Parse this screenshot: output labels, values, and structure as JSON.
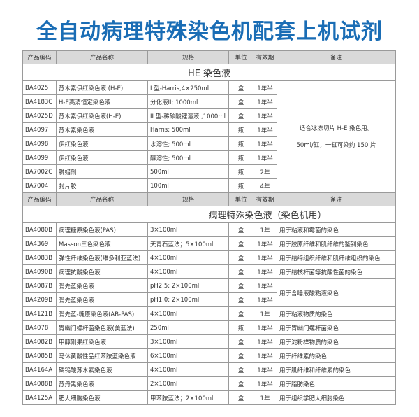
{
  "title": "全自动病理特殊染色机配套上机试剂",
  "headers": [
    "产品编码",
    "产品名称",
    "规格",
    "单位",
    "有效期",
    "备注"
  ],
  "sections": [
    {
      "title": "HE 染色液",
      "shared_remark": [
        "适合冰冻切片 H-E 染色用。",
        "50ml/缸，一缸可染约 150 片"
      ],
      "rows": [
        [
          "BA4025",
          "苏木素伊红染色液 (H-E)",
          "I 型-Harris,4×250ml",
          "盒",
          "1年半"
        ],
        [
          "BA4183C",
          "H-E高清恒定染色液",
          "分化液II; 1000ml",
          "盒",
          "1年半"
        ],
        [
          "BA4025D",
          "苏木素伊红染色液(H-E)",
          "II 型-稀碳酸锂溶液 ,1000ml",
          "盒",
          "1年半"
        ],
        [
          "BA4097",
          "苏木素染色液",
          "Harris; 500ml",
          "瓶",
          "1年半"
        ],
        [
          "BA4098",
          "伊红染色液",
          "水溶性; 500ml",
          "瓶",
          "1年半"
        ],
        [
          "BA4099",
          "伊红染色液",
          "醇溶性; 500ml",
          "瓶",
          "1年半"
        ],
        [
          "BA7002C",
          "脱蜡剂",
          "500ml",
          "瓶",
          "2年"
        ],
        [
          "BA7004",
          "封片胶",
          "100ml",
          "瓶",
          "4年"
        ]
      ]
    },
    {
      "title": "病理特殊染色液（染色机用）",
      "rows": [
        [
          "BA4080B",
          "病理糖原染色液(PAS)",
          "3×100ml",
          "盒",
          "1年",
          "用于粘液和霉菌的染色"
        ],
        [
          "BA4369",
          "Masson三色染色液",
          "天青石蓝法；5×100ml",
          "盒",
          "1年半",
          "用于胶原纤维和肌纤维的鉴别染色"
        ],
        [
          "BA4083B",
          "弹性纤维染色液(维多利亚蓝法)",
          "4×100ml",
          "盒",
          "1年半",
          "用于结缔组织纤维和肌纤维组织的染色"
        ],
        [
          "BA4090B",
          "病理抗酸染色液",
          "4×100ml",
          "盒",
          "1年半",
          "用于结核杆菌等抗酸性菌的染色"
        ],
        [
          "BA4087B",
          "爱先蓝染色液",
          "pH2.5; 2×100ml",
          "盒",
          "1年半",
          "用于含唾液酸粘液染色"
        ],
        [
          "BA4209B",
          "爱先蓝染色液",
          "pH1.0; 2×100ml",
          "盒",
          "1年半",
          null
        ],
        [
          "BA4121B",
          "爱先蓝-糖原染色液(AB-PAS)",
          "4×100ml",
          "盒",
          "1年",
          "用于粘液物质的染色"
        ],
        [
          "BA4078",
          "胃幽门螺杆菌染色液(美蓝法)",
          "250ml",
          "瓶",
          "1年半",
          "用于胃幽门螺杆菌染色"
        ],
        [
          "BA4082B",
          "甲醇刚果红染色液",
          "3×100ml",
          "盒",
          "1年半",
          "用于淀粉样物质的染色"
        ],
        [
          "BA4085B",
          "马休黄酸性品红苯胺蓝染色液",
          "6×100ml",
          "盒",
          "1年半",
          "用于纤维素的染色"
        ],
        [
          "BA4164A",
          "磷钨酸苏木素染色液",
          "4×100ml",
          "盒",
          "1年半",
          "用于肌纤维和纤维素的染色"
        ],
        [
          "BA4088B",
          "苏丹黑染色液",
          "2×100ml",
          "盒",
          "1年半",
          "用于脂肪染色"
        ],
        [
          "BA4125A",
          "肥大细胞染色液",
          "甲苯胺蓝法；2×100ml",
          "盒",
          "1年",
          "用于组织学肥大细胞染色"
        ]
      ]
    }
  ]
}
